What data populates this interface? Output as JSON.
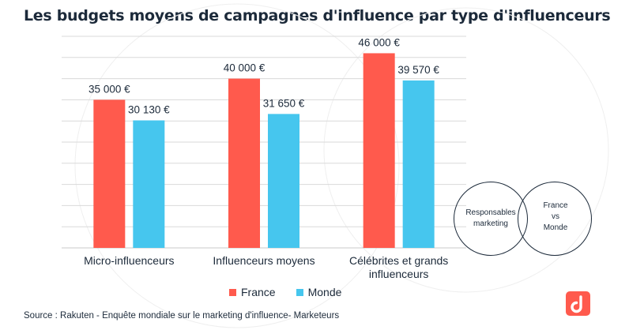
{
  "title": "Les budgets moyens de campagnes d'influence par type d'influenceurs",
  "colors": {
    "france": "#ff5a4d",
    "monde": "#46c6ee",
    "text": "#1c2a3a",
    "grid": "#d9d9d9"
  },
  "chart_data": {
    "type": "bar",
    "categories": [
      "Micro-influenceurs",
      "Influenceurs moyens",
      "Célébrites et grands influenceurs"
    ],
    "series": [
      {
        "name": "France",
        "values": [
          35000,
          40000,
          46000
        ],
        "labels": [
          "35 000 €",
          "40 000 €",
          "46 000 €"
        ]
      },
      {
        "name": "Monde",
        "values": [
          30130,
          31650,
          39570
        ],
        "labels": [
          "30 130 €",
          "31 650 €",
          "39 570 €"
        ]
      }
    ],
    "ylim": [
      0,
      50000
    ],
    "grid": true,
    "legend": "bottom-center"
  },
  "legend": {
    "france": "France",
    "monde": "Monde"
  },
  "venn": {
    "left_label": "Responsables\nmarketing",
    "right_label": "France\nvs\nMonde"
  },
  "source": "Source : Rakuten -  Enquête mondiale sur le marketing d'influence- Marketeurs",
  "logo_icon": "brand-logo-icon"
}
